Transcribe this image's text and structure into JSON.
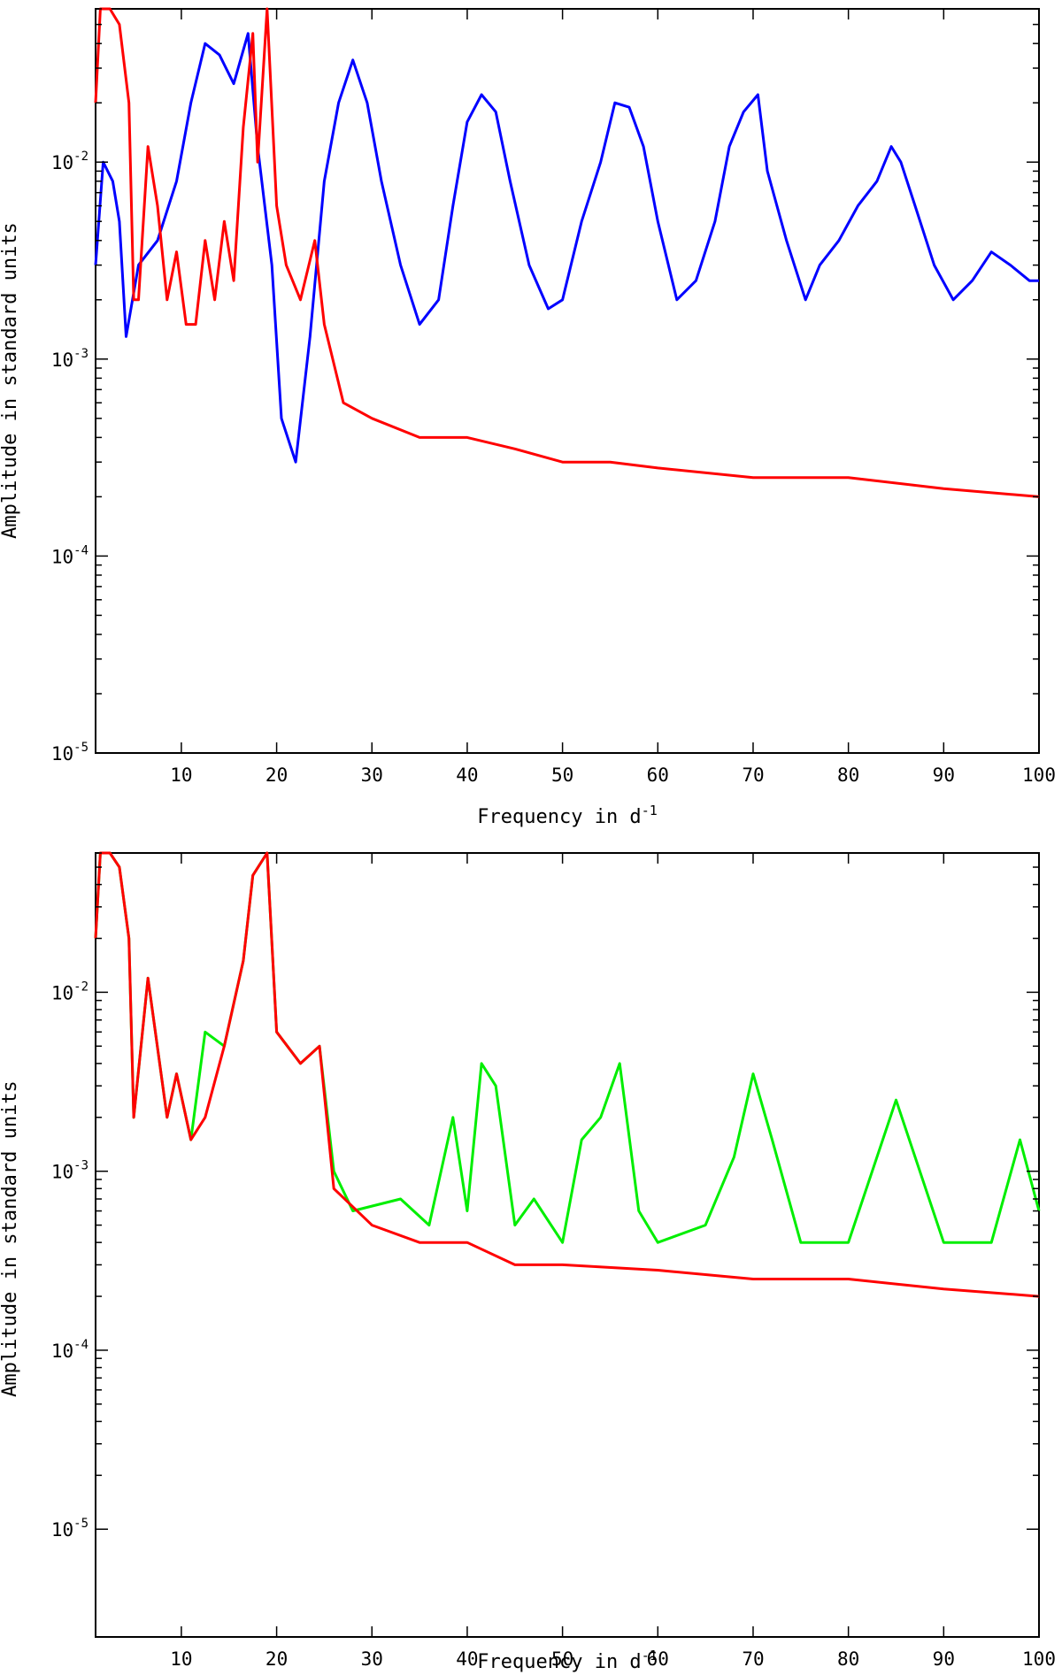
{
  "chart_data": [
    {
      "type": "line",
      "yscale": "log",
      "xlim": [
        1,
        100
      ],
      "ylim": [
        1e-05,
        0.06
      ],
      "xlabel": "Frequency in d",
      "xlabel_sup": "-1",
      "ylabel": "Amplitude in standard units",
      "x_ticks": [
        10,
        20,
        30,
        40,
        50,
        60,
        70,
        80,
        90,
        100
      ],
      "x_tick_labels": [
        "10",
        "20",
        "30",
        "40",
        "50",
        "60",
        "70",
        "80",
        "90",
        "100"
      ],
      "y_ticks": [
        {
          "value": 0.01,
          "mantissa": "10",
          "exp": "-2"
        },
        {
          "value": 0.001,
          "mantissa": "10",
          "exp": "-3"
        },
        {
          "value": 0.0001,
          "mantissa": "10",
          "exp": "-4"
        },
        {
          "value": 1e-05,
          "mantissa": "10",
          "exp": "-5"
        }
      ],
      "series": [
        {
          "name": "blue",
          "color": "#0000ff",
          "points": [
            [
              1.0,
              0.003
            ],
            [
              1.8,
              0.01
            ],
            [
              2.8,
              0.008
            ],
            [
              3.5,
              0.005
            ],
            [
              4.2,
              0.0013
            ],
            [
              5.5,
              0.003
            ],
            [
              7.5,
              0.004
            ],
            [
              9.5,
              0.008
            ],
            [
              11.0,
              0.02
            ],
            [
              12.5,
              0.04
            ],
            [
              14.0,
              0.035
            ],
            [
              15.5,
              0.025
            ],
            [
              17.0,
              0.045
            ],
            [
              18.0,
              0.012
            ],
            [
              19.5,
              0.003
            ],
            [
              20.5,
              0.0005
            ],
            [
              22.0,
              0.0003
            ],
            [
              23.5,
              0.0013
            ],
            [
              25.0,
              0.008
            ],
            [
              26.5,
              0.02
            ],
            [
              28.0,
              0.033
            ],
            [
              29.5,
              0.02
            ],
            [
              31.0,
              0.008
            ],
            [
              33.0,
              0.003
            ],
            [
              35.0,
              0.0015
            ],
            [
              37.0,
              0.002
            ],
            [
              38.5,
              0.006
            ],
            [
              40.0,
              0.016
            ],
            [
              41.5,
              0.022
            ],
            [
              43.0,
              0.018
            ],
            [
              44.5,
              0.008
            ],
            [
              46.5,
              0.003
            ],
            [
              48.5,
              0.0018
            ],
            [
              50.0,
              0.002
            ],
            [
              52.0,
              0.005
            ],
            [
              54.0,
              0.01
            ],
            [
              55.5,
              0.02
            ],
            [
              57.0,
              0.019
            ],
            [
              58.5,
              0.012
            ],
            [
              60.0,
              0.005
            ],
            [
              62.0,
              0.002
            ],
            [
              64.0,
              0.0025
            ],
            [
              66.0,
              0.005
            ],
            [
              67.5,
              0.012
            ],
            [
              69.0,
              0.018
            ],
            [
              70.5,
              0.022
            ],
            [
              71.5,
              0.009
            ],
            [
              73.5,
              0.004
            ],
            [
              75.5,
              0.002
            ],
            [
              77.0,
              0.003
            ],
            [
              79.0,
              0.004
            ],
            [
              81.0,
              0.006
            ],
            [
              83.0,
              0.008
            ],
            [
              84.5,
              0.012
            ],
            [
              85.5,
              0.01
            ],
            [
              87.0,
              0.006
            ],
            [
              89.0,
              0.003
            ],
            [
              91.0,
              0.002
            ],
            [
              93.0,
              0.0025
            ],
            [
              95.0,
              0.0035
            ],
            [
              97.0,
              0.003
            ],
            [
              99.0,
              0.0025
            ],
            [
              100.0,
              0.0025
            ]
          ]
        },
        {
          "name": "red",
          "color": "#ff0000",
          "points": [
            [
              1.0,
              0.02
            ],
            [
              1.5,
              0.06
            ],
            [
              2.5,
              0.06
            ],
            [
              3.5,
              0.05
            ],
            [
              4.5,
              0.02
            ],
            [
              5.0,
              0.002
            ],
            [
              5.5,
              0.002
            ],
            [
              6.5,
              0.012
            ],
            [
              7.5,
              0.006
            ],
            [
              8.5,
              0.002
            ],
            [
              9.5,
              0.0035
            ],
            [
              10.5,
              0.0015
            ],
            [
              11.5,
              0.0015
            ],
            [
              12.5,
              0.004
            ],
            [
              13.5,
              0.002
            ],
            [
              14.5,
              0.005
            ],
            [
              15.5,
              0.0025
            ],
            [
              16.5,
              0.015
            ],
            [
              17.5,
              0.045
            ],
            [
              18.0,
              0.01
            ],
            [
              19.0,
              0.06
            ],
            [
              20.0,
              0.006
            ],
            [
              21.0,
              0.003
            ],
            [
              22.5,
              0.002
            ],
            [
              24.0,
              0.004
            ],
            [
              25.0,
              0.0015
            ],
            [
              27.0,
              0.0006
            ],
            [
              30.0,
              0.0005
            ],
            [
              35.0,
              0.0004
            ],
            [
              40.0,
              0.0004
            ],
            [
              45.0,
              0.00035
            ],
            [
              50.0,
              0.0003
            ],
            [
              55.0,
              0.0003
            ],
            [
              60.0,
              0.00028
            ],
            [
              70.0,
              0.00025
            ],
            [
              80.0,
              0.00025
            ],
            [
              90.0,
              0.00022
            ],
            [
              100.0,
              0.0002
            ]
          ]
        }
      ]
    },
    {
      "type": "line",
      "yscale": "log",
      "xlim": [
        1,
        100
      ],
      "ylim": [
        2.5e-06,
        0.06
      ],
      "xlabel": "Frequency in d",
      "xlabel_sup": "-1",
      "ylabel": "Amplitude in standard units",
      "x_ticks": [
        10,
        20,
        30,
        40,
        50,
        60,
        70,
        80,
        90,
        100
      ],
      "x_tick_labels": [
        "10",
        "20",
        "30",
        "40",
        "50",
        "60",
        "70",
        "80",
        "90",
        "100"
      ],
      "y_ticks": [
        {
          "value": 0.01,
          "mantissa": "10",
          "exp": "-2"
        },
        {
          "value": 0.001,
          "mantissa": "10",
          "exp": "-3"
        },
        {
          "value": 0.0001,
          "mantissa": "10",
          "exp": "-4"
        },
        {
          "value": 1e-05,
          "mantissa": "10",
          "exp": "-5"
        }
      ],
      "series": [
        {
          "name": "green",
          "color": "#00ee00",
          "points": [
            [
              1.0,
              0.02
            ],
            [
              1.5,
              0.06
            ],
            [
              2.5,
              0.06
            ],
            [
              3.5,
              0.05
            ],
            [
              4.5,
              0.02
            ],
            [
              5.0,
              0.002
            ],
            [
              6.5,
              0.012
            ],
            [
              8.5,
              0.002
            ],
            [
              9.5,
              0.0035
            ],
            [
              11.0,
              0.0015
            ],
            [
              12.5,
              0.006
            ],
            [
              14.5,
              0.005
            ],
            [
              16.5,
              0.015
            ],
            [
              17.5,
              0.045
            ],
            [
              19.0,
              0.06
            ],
            [
              20.0,
              0.006
            ],
            [
              22.5,
              0.004
            ],
            [
              24.5,
              0.005
            ],
            [
              26.0,
              0.001
            ],
            [
              28.0,
              0.0006
            ],
            [
              33.0,
              0.0007
            ],
            [
              36.0,
              0.0005
            ],
            [
              38.5,
              0.002
            ],
            [
              40.0,
              0.0006
            ],
            [
              41.5,
              0.004
            ],
            [
              43.0,
              0.003
            ],
            [
              45.0,
              0.0005
            ],
            [
              47.0,
              0.0007
            ],
            [
              50.0,
              0.0004
            ],
            [
              52.0,
              0.0015
            ],
            [
              54.0,
              0.002
            ],
            [
              56.0,
              0.004
            ],
            [
              58.0,
              0.0006
            ],
            [
              60.0,
              0.0004
            ],
            [
              65.0,
              0.0005
            ],
            [
              68.0,
              0.0012
            ],
            [
              70.0,
              0.0035
            ],
            [
              72.0,
              0.0015
            ],
            [
              75.0,
              0.0004
            ],
            [
              80.0,
              0.0004
            ],
            [
              85.0,
              0.0025
            ],
            [
              90.0,
              0.0004
            ],
            [
              95.0,
              0.0004
            ],
            [
              98.0,
              0.0015
            ],
            [
              100.0,
              0.0006
            ]
          ]
        },
        {
          "name": "red",
          "color": "#ff0000",
          "points": [
            [
              1.0,
              0.02
            ],
            [
              1.5,
              0.06
            ],
            [
              2.5,
              0.06
            ],
            [
              3.5,
              0.05
            ],
            [
              4.5,
              0.02
            ],
            [
              5.0,
              0.002
            ],
            [
              6.5,
              0.012
            ],
            [
              8.5,
              0.002
            ],
            [
              9.5,
              0.0035
            ],
            [
              11.0,
              0.0015
            ],
            [
              12.5,
              0.002
            ],
            [
              14.5,
              0.005
            ],
            [
              16.5,
              0.015
            ],
            [
              17.5,
              0.045
            ],
            [
              19.0,
              0.06
            ],
            [
              20.0,
              0.006
            ],
            [
              22.5,
              0.004
            ],
            [
              24.5,
              0.005
            ],
            [
              26.0,
              0.0008
            ],
            [
              30.0,
              0.0005
            ],
            [
              35.0,
              0.0004
            ],
            [
              40.0,
              0.0004
            ],
            [
              45.0,
              0.0003
            ],
            [
              50.0,
              0.0003
            ],
            [
              60.0,
              0.00028
            ],
            [
              70.0,
              0.00025
            ],
            [
              80.0,
              0.00025
            ],
            [
              90.0,
              0.00022
            ],
            [
              100.0,
              0.0002
            ]
          ]
        }
      ]
    }
  ]
}
